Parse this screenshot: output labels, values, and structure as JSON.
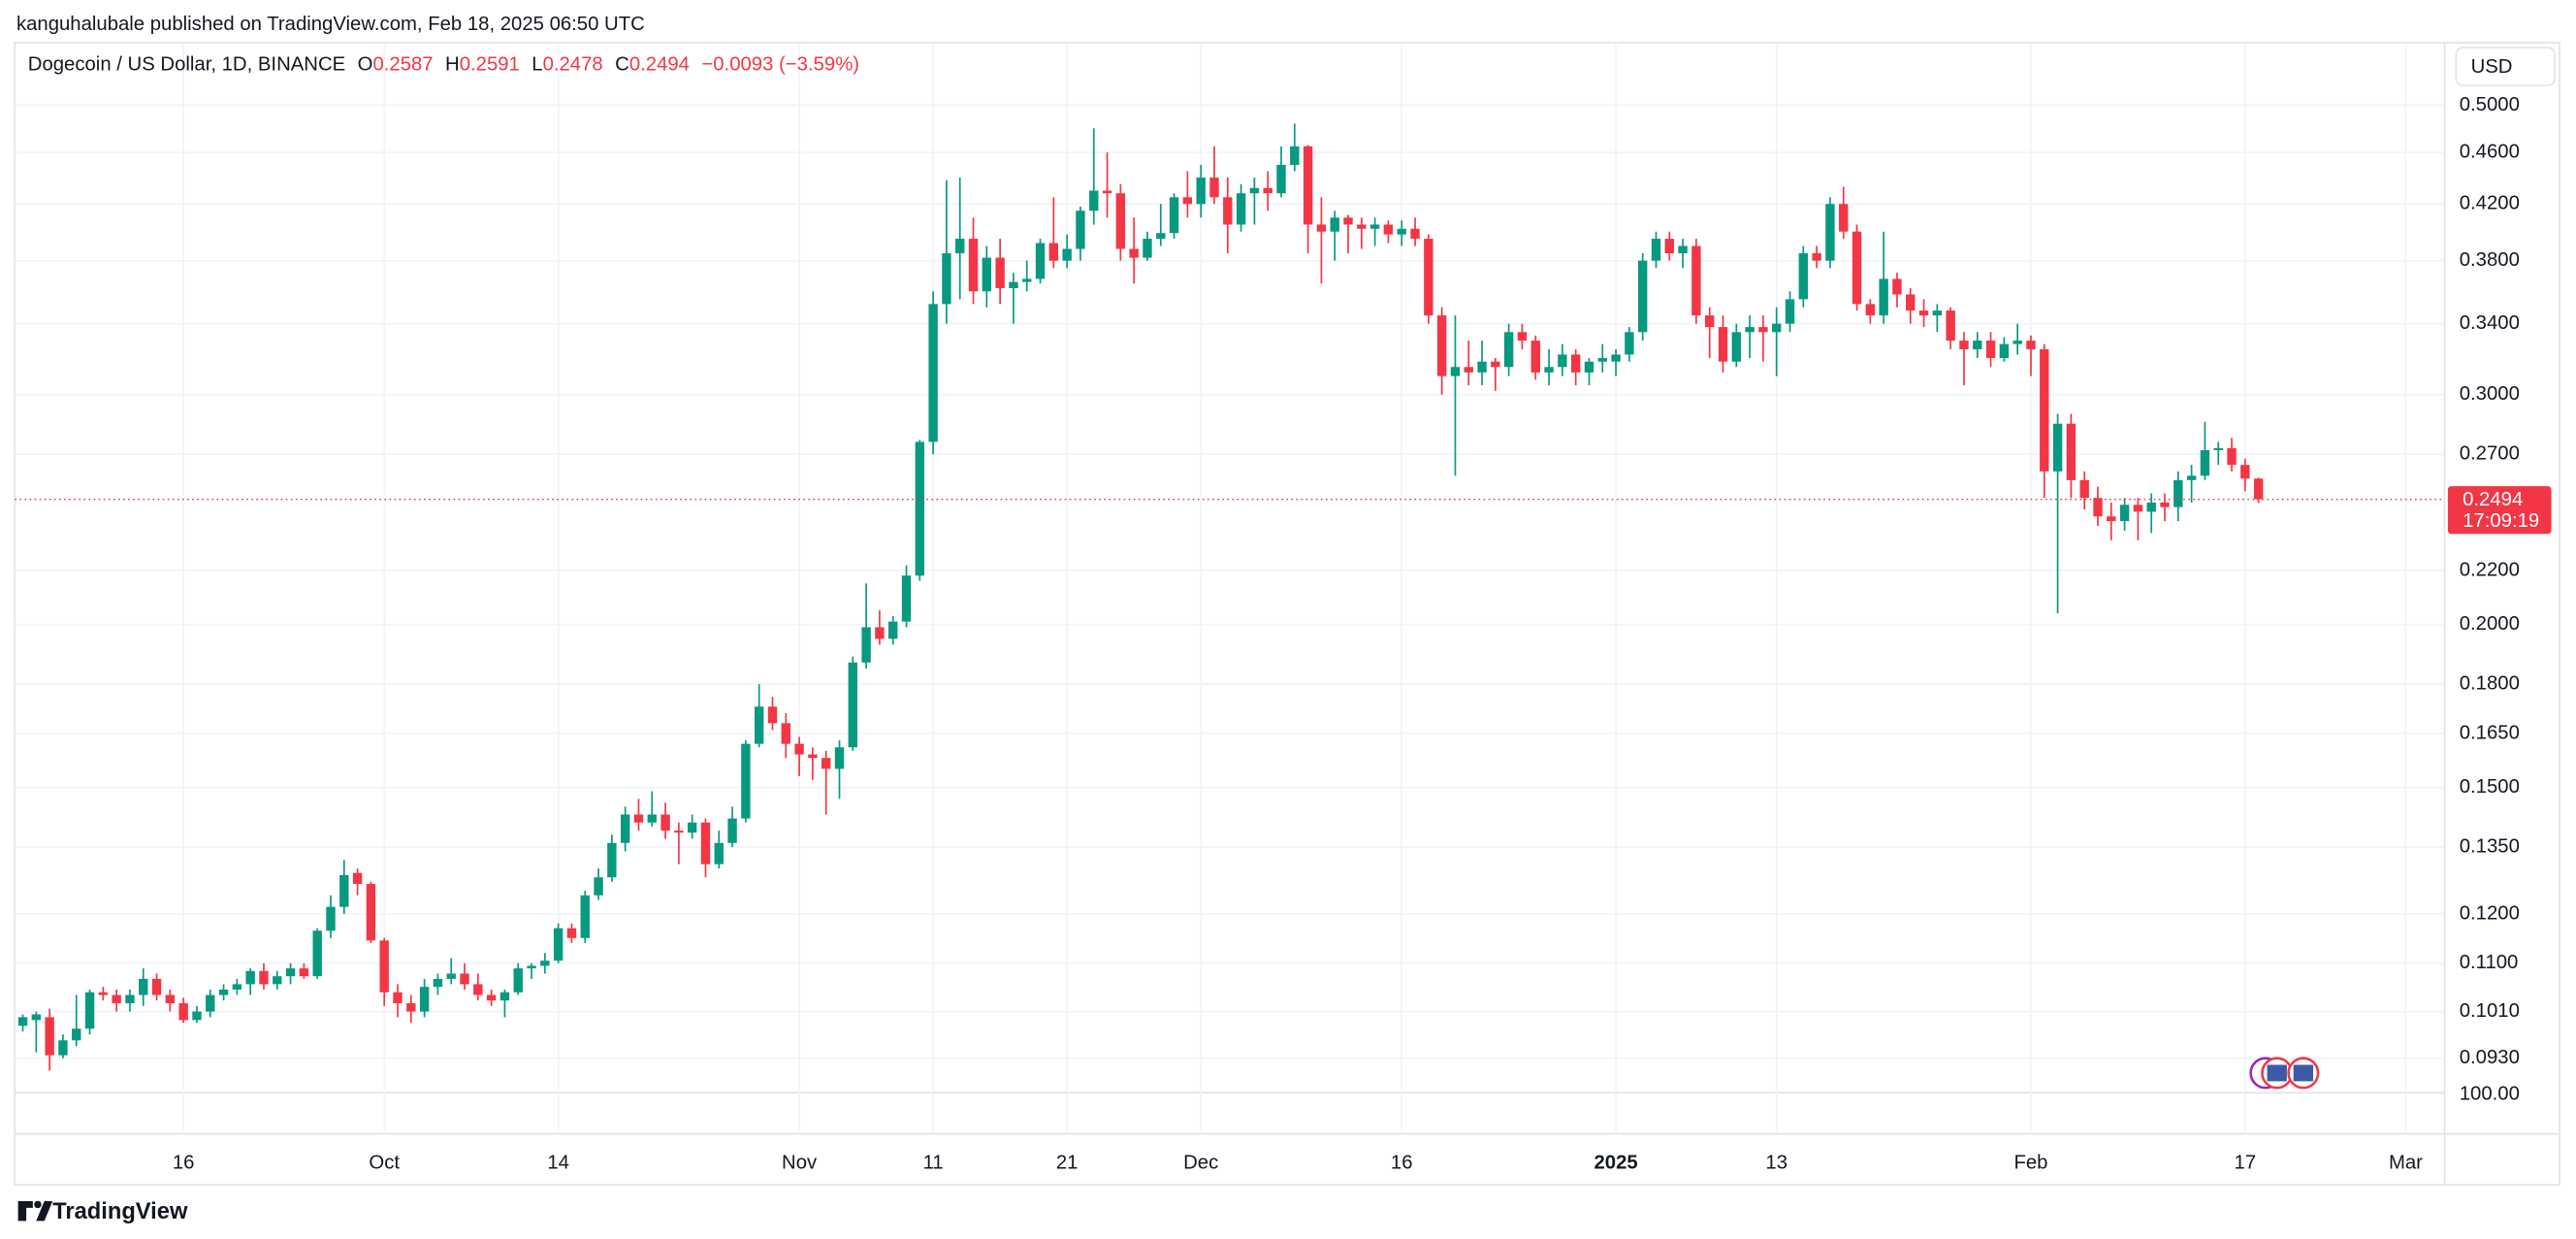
{
  "chart_data": {
    "type": "candlestick",
    "attribution": "kanguhalubale published on TradingView.com, Feb 18, 2025 06:50 UTC",
    "title": "Dogecoin / US Dollar, 1D, BINANCE",
    "ohlc_labels": [
      "O",
      "H",
      "L",
      "C"
    ],
    "change_label": "−0.0093 (−3.59%)",
    "currency": "USD",
    "countdown": "17:09:19",
    "bottom_label": "100.00",
    "brand": "TradingView",
    "log_scale": true,
    "grid": true,
    "up_color": "#089981",
    "down_color": "#f23645",
    "xlim": [
      -0.6,
      180.9
    ],
    "ylim": [
      0.0814,
      0.5177
    ],
    "xticks": [
      {
        "value": 12,
        "label": "16"
      },
      {
        "value": 27,
        "label": "Oct"
      },
      {
        "value": 40,
        "label": "14"
      },
      {
        "value": 58,
        "label": "Nov"
      },
      {
        "value": 68,
        "label": "11"
      },
      {
        "value": 78,
        "label": "21"
      },
      {
        "value": 88,
        "label": "Dec"
      },
      {
        "value": 103,
        "label": "16"
      },
      {
        "value": 119,
        "label": "2025"
      },
      {
        "value": 131,
        "label": "13"
      },
      {
        "value": 150,
        "label": "Feb"
      },
      {
        "value": 166,
        "label": "17"
      },
      {
        "value": 178,
        "label": "Mar"
      }
    ],
    "yticks": [
      {
        "value": 0.5,
        "label": "0.5000"
      },
      {
        "value": 0.46,
        "label": "0.4600"
      },
      {
        "value": 0.42,
        "label": "0.4200"
      },
      {
        "value": 0.38,
        "label": "0.3800"
      },
      {
        "value": 0.34,
        "label": "0.3400"
      },
      {
        "value": 0.3,
        "label": "0.3000"
      },
      {
        "value": 0.27,
        "label": "0.2700"
      },
      {
        "value": 0.22,
        "label": "0.2200"
      },
      {
        "value": 0.2,
        "label": "0.2000"
      },
      {
        "value": 0.18,
        "label": "0.1800"
      },
      {
        "value": 0.165,
        "label": "0.1650"
      },
      {
        "value": 0.15,
        "label": "0.1500"
      },
      {
        "value": 0.135,
        "label": "0.1350"
      },
      {
        "value": 0.12,
        "label": "0.1200"
      },
      {
        "value": 0.11,
        "label": "0.1100"
      },
      {
        "value": 0.101,
        "label": "0.1010"
      },
      {
        "value": 0.093,
        "label": "0.0930"
      }
    ],
    "series": [
      {
        "open": [
          0.0985,
          0.0995,
          0.1,
          0.0935,
          0.096,
          0.098,
          0.1045,
          0.104,
          0.1025,
          0.104,
          0.107,
          0.104,
          0.1025,
          0.0995,
          0.101,
          0.104,
          0.105,
          0.106,
          0.1085,
          0.106,
          0.1075,
          0.109,
          0.1075,
          0.1165,
          0.1215,
          0.129,
          0.1265,
          0.1145,
          0.1045,
          0.1025,
          0.101,
          0.1055,
          0.107,
          0.108,
          0.106,
          0.104,
          0.103,
          0.1045,
          0.109,
          0.1095,
          0.1105,
          0.117,
          0.115,
          0.124,
          0.128,
          0.136,
          0.143,
          0.141,
          0.143,
          0.139,
          0.1385,
          0.141,
          0.131,
          0.136,
          0.142,
          0.162,
          0.173,
          0.168,
          0.162,
          0.159,
          0.158,
          0.155,
          0.161,
          0.187,
          0.199,
          0.195,
          0.201,
          0.218,
          0.276,
          0.352,
          0.385,
          0.395,
          0.36,
          0.382,
          0.362,
          0.366,
          0.368,
          0.392,
          0.38,
          0.388,
          0.415,
          0.43,
          0.428,
          0.388,
          0.382,
          0.395,
          0.399,
          0.425,
          0.42,
          0.44,
          0.425,
          0.405,
          0.428,
          0.432,
          0.428,
          0.45,
          0.465,
          0.405,
          0.4,
          0.41,
          0.405,
          0.402,
          0.405,
          0.398,
          0.402,
          0.395,
          0.345,
          0.31,
          0.315,
          0.312,
          0.318,
          0.315,
          0.335,
          0.33,
          0.312,
          0.315,
          0.322,
          0.312,
          0.318,
          0.318,
          0.322,
          0.335,
          0.38,
          0.395,
          0.385,
          0.39,
          0.345,
          0.338,
          0.318,
          0.335,
          0.338,
          0.335,
          0.34,
          0.355,
          0.385,
          0.38,
          0.42,
          0.4,
          0.352,
          0.345,
          0.368,
          0.358,
          0.348,
          0.345,
          0.348,
          0.33,
          0.325,
          0.33,
          0.32,
          0.328,
          0.33,
          0.325,
          0.262,
          0.285,
          0.258,
          0.25,
          0.242,
          0.24,
          0.247,
          0.244,
          0.248,
          0.246,
          0.258,
          0.26,
          0.272,
          0.273,
          0.265,
          0.2587
        ],
        "high": [
          0.1005,
          0.101,
          0.1015,
          0.097,
          0.104,
          0.105,
          0.1055,
          0.105,
          0.105,
          0.109,
          0.108,
          0.105,
          0.1035,
          0.102,
          0.105,
          0.106,
          0.107,
          0.109,
          0.11,
          0.1085,
          0.11,
          0.11,
          0.117,
          0.124,
          0.132,
          0.13,
          0.127,
          0.115,
          0.106,
          0.104,
          0.107,
          0.108,
          0.111,
          0.11,
          0.108,
          0.105,
          0.105,
          0.11,
          0.11,
          0.112,
          0.118,
          0.118,
          0.125,
          0.13,
          0.138,
          0.145,
          0.147,
          0.149,
          0.146,
          0.141,
          0.143,
          0.142,
          0.139,
          0.145,
          0.163,
          0.18,
          0.176,
          0.171,
          0.164,
          0.161,
          0.16,
          0.163,
          0.189,
          0.215,
          0.205,
          0.203,
          0.222,
          0.277,
          0.36,
          0.438,
          0.44,
          0.41,
          0.39,
          0.395,
          0.372,
          0.38,
          0.395,
          0.425,
          0.398,
          0.418,
          0.48,
          0.46,
          0.435,
          0.41,
          0.4,
          0.42,
          0.428,
          0.445,
          0.45,
          0.465,
          0.44,
          0.435,
          0.44,
          0.445,
          0.465,
          0.484,
          0.466,
          0.425,
          0.415,
          0.412,
          0.41,
          0.41,
          0.408,
          0.408,
          0.41,
          0.398,
          0.35,
          0.345,
          0.33,
          0.33,
          0.32,
          0.34,
          0.34,
          0.333,
          0.325,
          0.328,
          0.325,
          0.32,
          0.328,
          0.325,
          0.338,
          0.385,
          0.4,
          0.4,
          0.395,
          0.395,
          0.35,
          0.345,
          0.34,
          0.345,
          0.345,
          0.35,
          0.36,
          0.39,
          0.39,
          0.425,
          0.433,
          0.405,
          0.355,
          0.4,
          0.372,
          0.362,
          0.355,
          0.352,
          0.35,
          0.335,
          0.335,
          0.335,
          0.332,
          0.34,
          0.333,
          0.328,
          0.29,
          0.29,
          0.262,
          0.255,
          0.248,
          0.25,
          0.25,
          0.252,
          0.252,
          0.262,
          0.265,
          0.286,
          0.276,
          0.278,
          0.268,
          0.2591
        ],
        "low": [
          0.0975,
          0.094,
          0.091,
          0.093,
          0.095,
          0.097,
          0.103,
          0.101,
          0.101,
          0.102,
          0.103,
          0.101,
          0.099,
          0.099,
          0.1,
          0.103,
          0.104,
          0.104,
          0.105,
          0.105,
          0.106,
          0.107,
          0.107,
          0.115,
          0.12,
          0.124,
          0.114,
          0.102,
          0.1,
          0.099,
          0.1,
          0.104,
          0.106,
          0.105,
          0.103,
          0.102,
          0.1,
          0.104,
          0.107,
          0.108,
          0.11,
          0.114,
          0.114,
          0.123,
          0.127,
          0.134,
          0.139,
          0.14,
          0.137,
          0.131,
          0.137,
          0.128,
          0.13,
          0.135,
          0.141,
          0.161,
          0.166,
          0.158,
          0.153,
          0.152,
          0.143,
          0.147,
          0.16,
          0.185,
          0.193,
          0.193,
          0.199,
          0.216,
          0.27,
          0.34,
          0.355,
          0.352,
          0.35,
          0.352,
          0.34,
          0.36,
          0.365,
          0.375,
          0.375,
          0.38,
          0.405,
          0.41,
          0.38,
          0.365,
          0.38,
          0.39,
          0.395,
          0.41,
          0.41,
          0.42,
          0.385,
          0.4,
          0.405,
          0.415,
          0.425,
          0.445,
          0.385,
          0.365,
          0.38,
          0.385,
          0.388,
          0.39,
          0.392,
          0.39,
          0.39,
          0.34,
          0.3,
          0.26,
          0.305,
          0.305,
          0.302,
          0.31,
          0.325,
          0.308,
          0.305,
          0.31,
          0.305,
          0.305,
          0.312,
          0.31,
          0.318,
          0.33,
          0.375,
          0.38,
          0.375,
          0.34,
          0.32,
          0.312,
          0.315,
          0.32,
          0.318,
          0.31,
          0.335,
          0.35,
          0.375,
          0.375,
          0.395,
          0.348,
          0.34,
          0.34,
          0.35,
          0.34,
          0.338,
          0.335,
          0.325,
          0.305,
          0.32,
          0.315,
          0.318,
          0.322,
          0.31,
          0.25,
          0.204,
          0.25,
          0.245,
          0.238,
          0.232,
          0.236,
          0.232,
          0.235,
          0.24,
          0.24,
          0.248,
          0.258,
          0.265,
          0.262,
          0.253,
          0.2478
        ],
        "close": [
          0.1,
          0.1005,
          0.0935,
          0.096,
          0.098,
          0.1045,
          0.104,
          0.1025,
          0.104,
          0.107,
          0.104,
          0.1025,
          0.0995,
          0.101,
          0.104,
          0.105,
          0.106,
          0.1085,
          0.106,
          0.1075,
          0.109,
          0.1075,
          0.1165,
          0.1215,
          0.1285,
          0.1265,
          0.1145,
          0.1045,
          0.1025,
          0.101,
          0.1055,
          0.107,
          0.108,
          0.106,
          0.104,
          0.103,
          0.1045,
          0.109,
          0.1095,
          0.1105,
          0.117,
          0.115,
          0.124,
          0.128,
          0.136,
          0.143,
          0.141,
          0.143,
          0.139,
          0.1385,
          0.141,
          0.131,
          0.136,
          0.142,
          0.162,
          0.173,
          0.168,
          0.162,
          0.159,
          0.158,
          0.155,
          0.161,
          0.187,
          0.199,
          0.195,
          0.201,
          0.218,
          0.276,
          0.352,
          0.385,
          0.395,
          0.36,
          0.382,
          0.362,
          0.366,
          0.368,
          0.392,
          0.38,
          0.388,
          0.415,
          0.43,
          0.428,
          0.388,
          0.382,
          0.395,
          0.399,
          0.425,
          0.42,
          0.44,
          0.425,
          0.405,
          0.428,
          0.432,
          0.428,
          0.45,
          0.465,
          0.405,
          0.4,
          0.41,
          0.405,
          0.402,
          0.405,
          0.398,
          0.402,
          0.395,
          0.345,
          0.31,
          0.315,
          0.312,
          0.318,
          0.315,
          0.335,
          0.33,
          0.312,
          0.315,
          0.322,
          0.312,
          0.318,
          0.32,
          0.322,
          0.335,
          0.38,
          0.395,
          0.385,
          0.39,
          0.345,
          0.338,
          0.318,
          0.335,
          0.338,
          0.335,
          0.34,
          0.355,
          0.385,
          0.38,
          0.42,
          0.4,
          0.352,
          0.345,
          0.368,
          0.358,
          0.348,
          0.345,
          0.348,
          0.33,
          0.325,
          0.33,
          0.32,
          0.328,
          0.33,
          0.325,
          0.262,
          0.285,
          0.258,
          0.25,
          0.242,
          0.24,
          0.247,
          0.244,
          0.248,
          0.246,
          0.258,
          0.26,
          0.272,
          0.273,
          0.265,
          0.2587,
          0.2494
        ]
      }
    ]
  }
}
